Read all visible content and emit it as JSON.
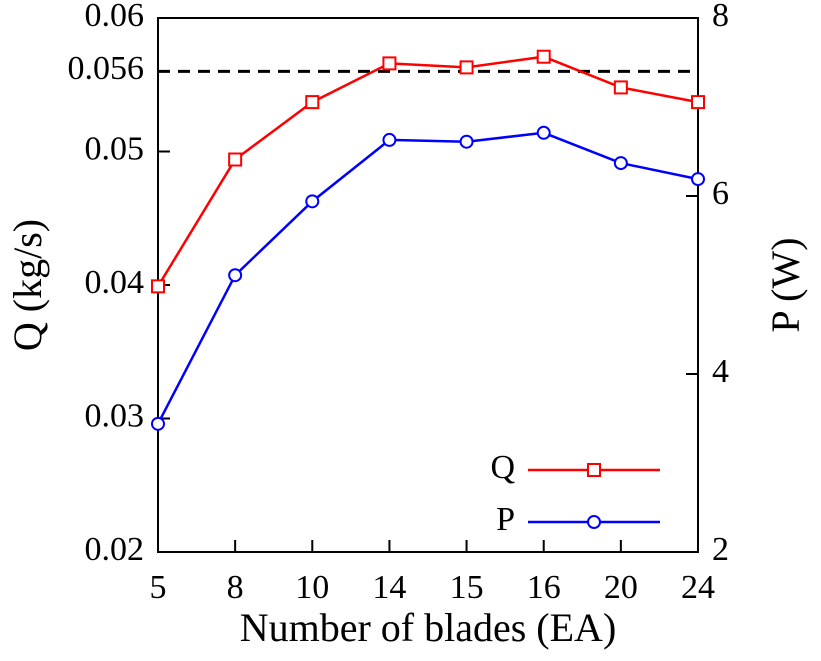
{
  "chart_data": {
    "type": "line",
    "xlabel": "Number of blades (EA)",
    "ylabel": "Q (kg/s)",
    "y2label": "P (W)",
    "categories": [
      "5",
      "8",
      "10",
      "14",
      "15",
      "16",
      "20",
      "24"
    ],
    "series": [
      {
        "name": "Q",
        "color": "#ff0000",
        "marker": "square",
        "values": [
          0.0399,
          0.0494,
          0.0537,
          0.0566,
          0.0563,
          0.0571,
          0.0548,
          0.0537
        ]
      },
      {
        "name": "P",
        "color": "#0000ff",
        "marker": "circle",
        "axis": "y2",
        "values": [
          3.44,
          5.11,
          5.94,
          6.63,
          6.61,
          6.71,
          6.37,
          6.19
        ]
      }
    ],
    "ylim": [
      0.02,
      0.06
    ],
    "yticks": [
      0.02,
      0.03,
      0.04,
      0.05,
      0.056,
      0.06
    ],
    "y2lim": [
      2,
      8
    ],
    "y2ticks": [
      2,
      4,
      6,
      8
    ],
    "reference_line": 0.056,
    "legend": "lower right"
  }
}
